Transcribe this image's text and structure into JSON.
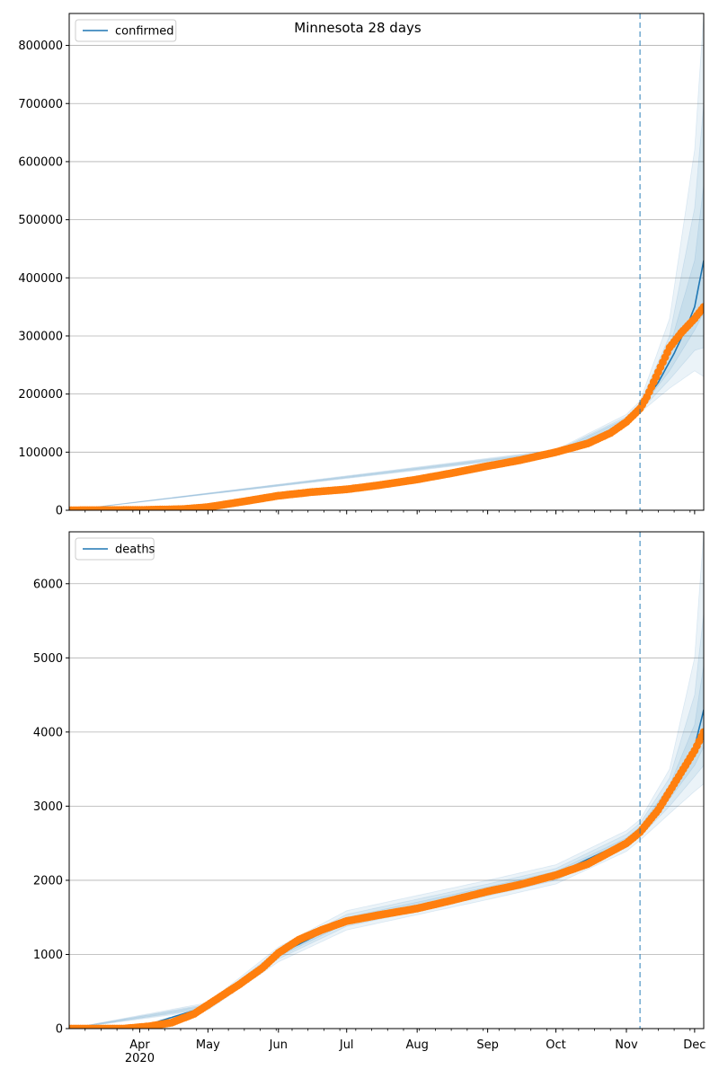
{
  "title": "Minnesota 28 days",
  "colors": {
    "model_line": "#1f77b4",
    "observed": "#ff7f0e",
    "band": "#1f77b4",
    "forecast_marker": "#1f77b4",
    "grid": "#b0b0b0"
  },
  "x_axis": {
    "range": [
      "2020-03-01",
      "2020-12-05"
    ],
    "major_ticks": [
      {
        "date": "2020-04-01",
        "label": "Apr",
        "sublabel": "2020"
      },
      {
        "date": "2020-05-01",
        "label": "May"
      },
      {
        "date": "2020-06-01",
        "label": "Jun"
      },
      {
        "date": "2020-07-01",
        "label": "Jul"
      },
      {
        "date": "2020-08-01",
        "label": "Aug"
      },
      {
        "date": "2020-09-01",
        "label": "Sep"
      },
      {
        "date": "2020-10-01",
        "label": "Oct"
      },
      {
        "date": "2020-11-01",
        "label": "Nov"
      },
      {
        "date": "2020-12-01",
        "label": "Dec"
      }
    ],
    "forecast_start": "2020-11-07"
  },
  "chart_data": [
    {
      "type": "line",
      "legend": {
        "label": "confirmed",
        "placement": "top-left"
      },
      "ylim": [
        0,
        855000
      ],
      "yticks": [
        0,
        100000,
        200000,
        300000,
        400000,
        500000,
        600000,
        700000,
        800000
      ],
      "grid": true,
      "observed_knots": [
        [
          "2020-03-01",
          0
        ],
        [
          "2020-04-01",
          500
        ],
        [
          "2020-04-20",
          2000
        ],
        [
          "2020-05-01",
          5500
        ],
        [
          "2020-05-15",
          14000
        ],
        [
          "2020-06-01",
          25000
        ],
        [
          "2020-06-15",
          31000
        ],
        [
          "2020-07-01",
          36000
        ],
        [
          "2020-07-15",
          43000
        ],
        [
          "2020-08-01",
          53000
        ],
        [
          "2020-08-15",
          63000
        ],
        [
          "2020-09-01",
          76000
        ],
        [
          "2020-09-15",
          86000
        ],
        [
          "2020-10-01",
          100000
        ],
        [
          "2020-10-15",
          115000
        ],
        [
          "2020-10-25",
          133000
        ],
        [
          "2020-11-01",
          152000
        ],
        [
          "2020-11-07",
          175000
        ],
        [
          "2020-11-10",
          195000
        ],
        [
          "2020-11-15",
          238000
        ],
        [
          "2020-11-20",
          280000
        ],
        [
          "2020-11-25",
          305000
        ],
        [
          "2020-12-01",
          330000
        ],
        [
          "2020-12-05",
          350000
        ]
      ],
      "model_knots": [
        [
          "2020-03-01",
          0
        ],
        [
          "2020-04-01",
          500
        ],
        [
          "2020-05-01",
          5500
        ],
        [
          "2020-06-01",
          25000
        ],
        [
          "2020-07-01",
          36000
        ],
        [
          "2020-08-01",
          53000
        ],
        [
          "2020-09-01",
          76000
        ],
        [
          "2020-10-01",
          100000
        ],
        [
          "2020-10-15",
          115000
        ],
        [
          "2020-11-01",
          155000
        ],
        [
          "2020-11-07",
          177000
        ],
        [
          "2020-11-15",
          220000
        ],
        [
          "2020-11-22",
          270000
        ],
        [
          "2020-11-28",
          320000
        ],
        [
          "2020-12-01",
          350000
        ],
        [
          "2020-12-05",
          430000
        ]
      ],
      "bands": [
        {
          "knots": [
            [
              "2020-03-01",
              0,
              0
            ],
            [
              "2020-10-01",
              96000,
              104000
            ],
            [
              "2020-11-01",
              145000,
              165000
            ],
            [
              "2020-11-07",
              168000,
              188000
            ],
            [
              "2020-11-20",
              210000,
              330000
            ],
            [
              "2020-12-01",
              240000,
              620000
            ],
            [
              "2020-12-05",
              230000,
              855000
            ]
          ]
        },
        {
          "knots": [
            [
              "2020-03-01",
              0,
              0
            ],
            [
              "2020-10-01",
              97500,
              102500
            ],
            [
              "2020-11-01",
              148000,
              161000
            ],
            [
              "2020-11-07",
              171000,
              184000
            ],
            [
              "2020-11-20",
              225000,
              300000
            ],
            [
              "2020-12-01",
              275000,
              520000
            ],
            [
              "2020-12-05",
              280000,
              700000
            ]
          ]
        },
        {
          "knots": [
            [
              "2020-03-01",
              0,
              0
            ],
            [
              "2020-10-01",
              99000,
              101000
            ],
            [
              "2020-11-01",
              151000,
              158000
            ],
            [
              "2020-11-07",
              174000,
              181000
            ],
            [
              "2020-11-20",
              240000,
              280000
            ],
            [
              "2020-12-01",
              310000,
              430000
            ],
            [
              "2020-12-05",
              340000,
              560000
            ]
          ]
        }
      ]
    },
    {
      "type": "line",
      "legend": {
        "label": "deaths",
        "placement": "top-left"
      },
      "ylim": [
        0,
        6700
      ],
      "yticks": [
        0,
        1000,
        2000,
        3000,
        4000,
        5000,
        6000
      ],
      "grid": true,
      "observed_knots": [
        [
          "2020-03-01",
          0
        ],
        [
          "2020-03-25",
          0
        ],
        [
          "2020-04-05",
          30
        ],
        [
          "2020-04-15",
          80
        ],
        [
          "2020-04-25",
          200
        ],
        [
          "2020-05-05",
          400
        ],
        [
          "2020-05-15",
          600
        ],
        [
          "2020-05-25",
          820
        ],
        [
          "2020-06-01",
          1020
        ],
        [
          "2020-06-10",
          1200
        ],
        [
          "2020-06-20",
          1330
        ],
        [
          "2020-07-01",
          1450
        ],
        [
          "2020-07-15",
          1530
        ],
        [
          "2020-08-01",
          1620
        ],
        [
          "2020-08-15",
          1720
        ],
        [
          "2020-09-01",
          1850
        ],
        [
          "2020-09-15",
          1940
        ],
        [
          "2020-10-01",
          2070
        ],
        [
          "2020-10-15",
          2220
        ],
        [
          "2020-11-01",
          2500
        ],
        [
          "2020-11-07",
          2650
        ],
        [
          "2020-11-15",
          2950
        ],
        [
          "2020-11-22",
          3300
        ],
        [
          "2020-11-28",
          3600
        ],
        [
          "2020-12-01",
          3750
        ],
        [
          "2020-12-05",
          4000
        ]
      ],
      "model_knots": [
        [
          "2020-03-01",
          0
        ],
        [
          "2020-04-01",
          20
        ],
        [
          "2020-05-01",
          300
        ],
        [
          "2020-06-01",
          1000
        ],
        [
          "2020-07-01",
          1460
        ],
        [
          "2020-08-01",
          1640
        ],
        [
          "2020-09-01",
          1870
        ],
        [
          "2020-10-01",
          2080
        ],
        [
          "2020-11-01",
          2530
        ],
        [
          "2020-11-07",
          2680
        ],
        [
          "2020-11-15",
          2950
        ],
        [
          "2020-11-25",
          3450
        ],
        [
          "2020-12-01",
          3800
        ],
        [
          "2020-12-05",
          4300
        ]
      ],
      "bands": [
        {
          "knots": [
            [
              "2020-03-01",
              0,
              0
            ],
            [
              "2020-05-01",
              250,
              350
            ],
            [
              "2020-06-01",
              900,
              1100
            ],
            [
              "2020-07-01",
              1330,
              1590
            ],
            [
              "2020-09-01",
              1740,
              2000
            ],
            [
              "2020-10-01",
              1950,
              2210
            ],
            [
              "2020-11-01",
              2390,
              2670
            ],
            [
              "2020-11-07",
              2540,
              2820
            ],
            [
              "2020-11-20",
              2900,
              3500
            ],
            [
              "2020-12-01",
              3200,
              5000
            ],
            [
              "2020-12-05",
              3300,
              6700
            ]
          ]
        },
        {
          "knots": [
            [
              "2020-03-01",
              0,
              0
            ],
            [
              "2020-05-01",
              270,
              330
            ],
            [
              "2020-06-01",
              940,
              1060
            ],
            [
              "2020-07-01",
              1380,
              1540
            ],
            [
              "2020-09-01",
              1790,
              1950
            ],
            [
              "2020-10-01",
              2000,
              2160
            ],
            [
              "2020-11-01",
              2440,
              2620
            ],
            [
              "2020-11-07",
              2590,
              2770
            ],
            [
              "2020-11-20",
              3000,
              3380
            ],
            [
              "2020-12-01",
              3400,
              4500
            ],
            [
              "2020-12-05",
              3550,
              5600
            ]
          ]
        },
        {
          "knots": [
            [
              "2020-03-01",
              0,
              0
            ],
            [
              "2020-05-01",
              285,
              315
            ],
            [
              "2020-06-01",
              970,
              1030
            ],
            [
              "2020-07-01",
              1420,
              1500
            ],
            [
              "2020-09-01",
              1830,
              1910
            ],
            [
              "2020-10-01",
              2040,
              2120
            ],
            [
              "2020-11-01",
              2490,
              2570
            ],
            [
              "2020-11-07",
              2640,
              2720
            ],
            [
              "2020-11-20",
              3100,
              3280
            ],
            [
              "2020-12-01",
              3550,
              4100
            ],
            [
              "2020-12-05",
              3800,
              4900
            ]
          ]
        }
      ]
    }
  ]
}
